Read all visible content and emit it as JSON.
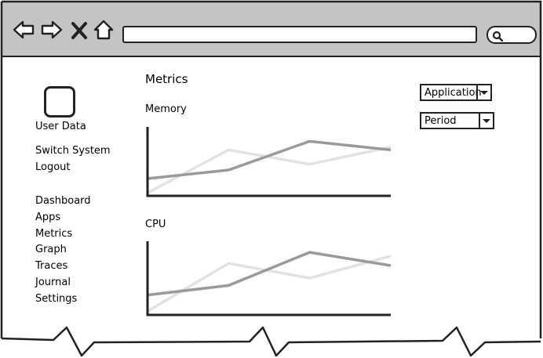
{
  "sidebar": {
    "user_label": "User Data",
    "account_links": [
      "Switch System",
      "Logout"
    ],
    "nav_items": [
      "Dashboard",
      "Apps",
      "Metrics",
      "Graph",
      "Traces",
      "Journal",
      "Settings"
    ]
  },
  "main": {
    "title": "Metrics",
    "charts": [
      "Memory",
      "CPU"
    ]
  },
  "filters": {
    "application_label": "Application",
    "period_label": "Period"
  },
  "colors": {
    "browser_bar": "#c4c4c4",
    "series_dark": "#9a9a9a",
    "series_light": "#e2e2e2",
    "stroke": "#222222"
  },
  "chart_data": [
    {
      "type": "line",
      "title": "Memory",
      "x": [
        0,
        1,
        2,
        3
      ],
      "series": [
        {
          "values": [
            0.3,
            0.45,
            0.95,
            0.8
          ]
        },
        {
          "values": [
            0.05,
            0.8,
            0.55,
            0.85
          ]
        }
      ],
      "ylim": [
        0,
        1.2
      ],
      "grid": false
    },
    {
      "type": "line",
      "title": "CPU",
      "x": [
        0,
        1,
        2,
        3
      ],
      "series": [
        {
          "values": [
            0.27,
            0.4,
            0.85,
            0.67
          ]
        },
        {
          "values": [
            0.05,
            0.7,
            0.5,
            0.8
          ]
        }
      ],
      "ylim": [
        0,
        1.0
      ],
      "grid": false
    }
  ]
}
